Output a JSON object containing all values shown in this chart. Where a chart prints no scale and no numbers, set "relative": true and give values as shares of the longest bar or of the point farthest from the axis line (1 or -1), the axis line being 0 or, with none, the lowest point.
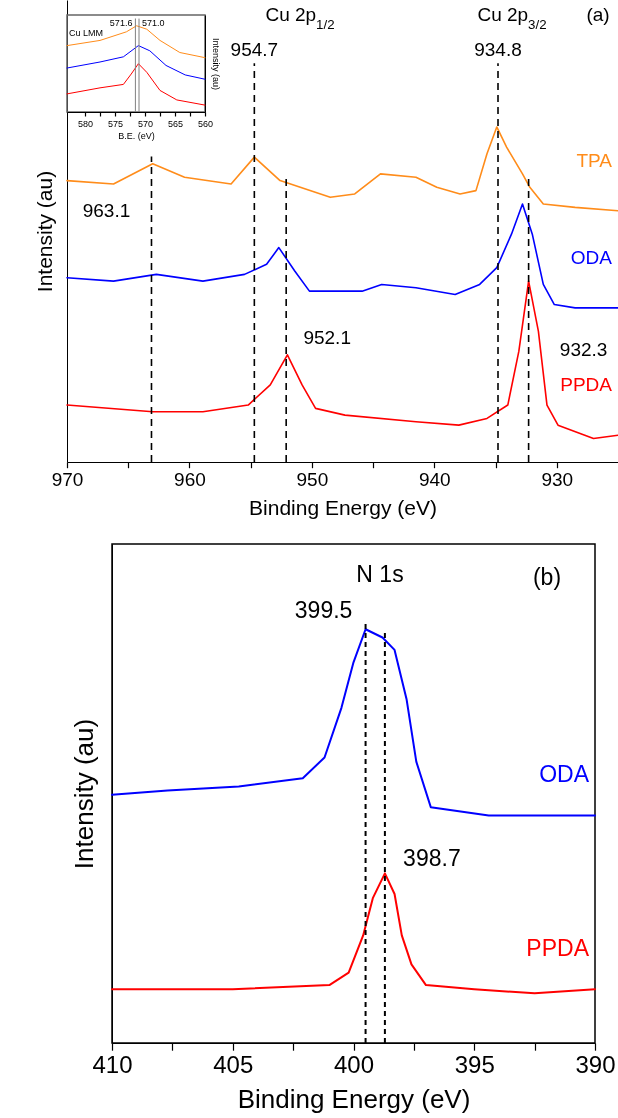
{
  "chart_data": [
    {
      "type": "line",
      "xlabel": "Binding Energy (eV)",
      "ylabel": "Intensity (au)",
      "relative": true,
      "xlim": [
        970,
        925
      ],
      "xticks": [
        970,
        {
          "value": 965,
          "label": null
        },
        960,
        {
          "value": 955,
          "label": null
        },
        950,
        {
          "value": 945,
          "label": null
        },
        940,
        {
          "value": 935,
          "label": null
        },
        930
      ],
      "series": [
        {
          "name": "TPA",
          "color": "#ff8c1a",
          "x": [
            970,
            966.2,
            963.0,
            960.4,
            956.6,
            954.7,
            952.6,
            948.5,
            946.5,
            944.4,
            941.5,
            939.8,
            937.9,
            936.6,
            935.7,
            934.9,
            934.1,
            932.8,
            932.2,
            931.1,
            928.5,
            925
          ],
          "values": [
            0.84,
            0.83,
            0.89,
            0.85,
            0.83,
            0.91,
            0.84,
            0.79,
            0.8,
            0.86,
            0.85,
            0.82,
            0.8,
            0.81,
            0.92,
            1,
            0.94,
            0.86,
            0.82,
            0.77,
            0.76,
            0.75
          ]
        },
        {
          "name": "ODA",
          "color": "#0000ff",
          "x": [
            970,
            966.2,
            962.7,
            958.9,
            955.5,
            953.7,
            952.7,
            951.4,
            950.2,
            945.9,
            944.3,
            941.5,
            938.3,
            936.3,
            934.9,
            933.7,
            932.8,
            932.0,
            931.1,
            930.2,
            928.5,
            925
          ],
          "values": [
            0.55,
            0.54,
            0.56,
            0.54,
            0.56,
            0.59,
            0.64,
            0.57,
            0.51,
            0.51,
            0.53,
            0.52,
            0.5,
            0.53,
            0.58,
            0.68,
            0.77,
            0.68,
            0.53,
            0.47,
            0.46,
            0.46
          ]
        },
        {
          "name": "PPDA",
          "color": "#ff0000",
          "x": [
            970,
            963.0,
            958.9,
            955.2,
            953.4,
            952.0,
            950.8,
            949.7,
            947.3,
            941.5,
            938.0,
            935.7,
            934.0,
            933.1,
            932.3,
            931.5,
            930.8,
            929.9,
            927,
            925
          ],
          "values": [
            0.17,
            0.15,
            0.15,
            0.17,
            0.23,
            0.32,
            0.23,
            0.16,
            0.14,
            0.12,
            0.11,
            0.13,
            0.17,
            0.33,
            0.54,
            0.39,
            0.17,
            0.11,
            0.07,
            0.08
          ]
        }
      ],
      "ref_lines": [
        {
          "axis": "x",
          "value": 963.1,
          "label": "963.1",
          "color": "#000000",
          "line_style": "dashed"
        },
        {
          "axis": "x",
          "value": 954.7,
          "label": "954.7",
          "color": "#000000",
          "line_style": "dashed"
        },
        {
          "axis": "x",
          "value": 952.1,
          "label": "952.1",
          "color": "#000000",
          "line_style": "dashed"
        },
        {
          "axis": "x",
          "value": 934.8,
          "label": "934.8",
          "color": "#000000",
          "line_style": "dashed"
        },
        {
          "axis": "x",
          "value": 932.3,
          "label": "932.3",
          "color": "#000000",
          "line_style": "dashed"
        }
      ],
      "annotations": [
        "(a)",
        "Cu 2p$_{1/2}$",
        "Cu 2p$_{3/2}$"
      ]
    },
    {
      "type": "line",
      "xlabel": "B.E. (eV)",
      "ylabel": "Intensity (au)",
      "relative": true,
      "xlim": [
        583,
        560
      ],
      "xticks": [
        580,
        {
          "value": 577.5,
          "label": null
        },
        575,
        {
          "value": 572.5,
          "label": null
        },
        570,
        {
          "value": 567.5,
          "label": null
        },
        565,
        {
          "value": 562.5,
          "label": null
        },
        560
      ],
      "series": [
        {
          "color": "#ff8c1a",
          "x": [
            583,
            577.5,
            573.1,
            571.4,
            569.7,
            567.5,
            564.2,
            560
          ],
          "values": [
            0.77,
            0.83,
            0.93,
            1,
            0.96,
            0.83,
            0.69,
            0.63
          ]
        },
        {
          "color": "#0000ff",
          "x": [
            583,
            577.5,
            573.6,
            571.1,
            569.2,
            566.5,
            563.3,
            560
          ],
          "values": [
            0.51,
            0.58,
            0.64,
            0.77,
            0.71,
            0.54,
            0.43,
            0.38
          ]
        },
        {
          "color": "#ff0000",
          "x": [
            583,
            577.5,
            573.6,
            572.3,
            571.1,
            569.7,
            567.5,
            564.7,
            560
          ],
          "values": [
            0.21,
            0.28,
            0.32,
            0.44,
            0.56,
            0.46,
            0.25,
            0.14,
            0.08
          ]
        }
      ],
      "ref_lines": [
        {
          "axis": "x",
          "value": 571.6,
          "label": "571.6",
          "color": "#808080",
          "line_style": "solid"
        },
        {
          "axis": "x",
          "value": 571.0,
          "label": "571.0",
          "color": "#808080",
          "line_style": "solid"
        }
      ],
      "annotations": [
        "Cu LMM"
      ]
    },
    {
      "type": "line",
      "xlabel": "Binding Energy (eV)",
      "ylabel": "Intensity (au)",
      "relative": true,
      "xlim": [
        410,
        390
      ],
      "xticks": [
        410,
        {
          "value": 407.5,
          "label": null
        },
        405,
        {
          "value": 402.5,
          "label": null
        },
        400,
        {
          "value": 397.5,
          "label": null
        },
        395,
        {
          "value": 392.5,
          "label": null
        },
        390
      ],
      "series": [
        {
          "name": "ODA",
          "color": "#0000ff",
          "x": [
            410,
            407.7,
            404.75,
            402.1,
            401.2,
            400.5,
            400.0,
            399.5,
            398.8,
            398.3,
            397.8,
            397.4,
            396.8,
            394.4,
            390
          ],
          "values": [
            0.6,
            0.61,
            0.62,
            0.64,
            0.69,
            0.81,
            0.92,
            1,
            0.98,
            0.95,
            0.83,
            0.68,
            0.57,
            0.55,
            0.55
          ]
        },
        {
          "name": "PPDA",
          "color": "#ff0000",
          "x": [
            410,
            405,
            401,
            400.2,
            399.6,
            399.2,
            398.7,
            398.3,
            398.0,
            397.6,
            397.0,
            395,
            392.5,
            390
          ],
          "values": [
            0.13,
            0.13,
            0.14,
            0.17,
            0.26,
            0.35,
            0.41,
            0.36,
            0.26,
            0.19,
            0.14,
            0.13,
            0.12,
            0.13
          ]
        }
      ],
      "ref_lines": [
        {
          "axis": "x",
          "value": 399.5,
          "label": "399.5",
          "color": "#000000",
          "line_style": "dashed"
        },
        {
          "axis": "x",
          "value": 398.7,
          "label": "398.7",
          "color": "#000000",
          "line_style": "dashed"
        }
      ],
      "annotations": [
        "(b)",
        "N 1s"
      ]
    }
  ]
}
